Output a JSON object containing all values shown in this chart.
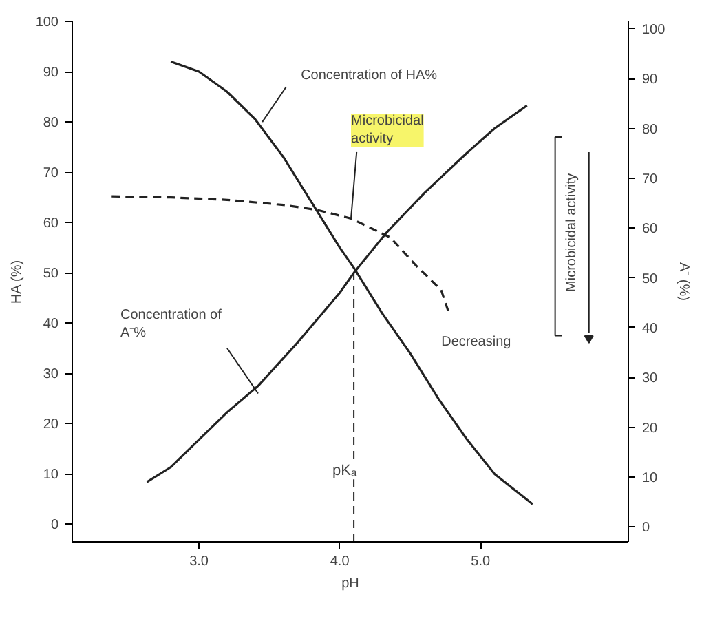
{
  "chart_data": {
    "type": "line",
    "xlabel": "pH",
    "ylabel": "HA (%)",
    "y2label": "A⁻ (%)",
    "xlim": [
      2.1,
      6.05
    ],
    "ylim": [
      -3.5,
      100
    ],
    "y2lim": [
      -3,
      101.5
    ],
    "xticks": [
      {
        "value": 3,
        "label": "3.0"
      },
      {
        "value": 4,
        "label": "4.0"
      },
      {
        "value": 5,
        "label": "5.0"
      }
    ],
    "yticks": [
      0,
      10,
      20,
      30,
      40,
      50,
      60,
      70,
      80,
      90,
      100
    ],
    "y2ticks": [
      0,
      10,
      20,
      30,
      40,
      50,
      60,
      70,
      80,
      90,
      100
    ],
    "grid": false,
    "marker": "none",
    "series": [
      {
        "color": "#222222",
        "line_style": "solid",
        "x": [
          2.8,
          3.0,
          3.2,
          3.4,
          3.6,
          3.8,
          4.0,
          4.1,
          4.3,
          4.5,
          4.7,
          4.9,
          5.1,
          5.37
        ],
        "values": [
          92,
          90,
          86,
          80.5,
          73,
          64,
          55,
          51,
          42,
          34,
          25,
          17,
          10,
          4
        ]
      },
      {
        "color": "#222222",
        "line_style": "solid",
        "axis": "y2",
        "x": [
          2.63,
          2.8,
          3.0,
          3.2,
          3.42,
          3.7,
          4.0,
          4.1,
          4.33,
          4.6,
          4.9,
          5.1,
          5.33
        ],
        "values": [
          9,
          12,
          17.5,
          23,
          28.3,
          37,
          47,
          51,
          59,
          67,
          75,
          80,
          84.6
        ]
      },
      {
        "color": "#222222",
        "line_style": "dashed",
        "x": [
          2.38,
          2.8,
          3.2,
          3.6,
          3.84,
          4.08,
          4.36,
          4.54,
          4.72,
          4.78
        ],
        "values": [
          65.2,
          65,
          64.5,
          63.5,
          62.5,
          60.8,
          57,
          51.5,
          46.6,
          41.6
        ]
      }
    ],
    "ref_lines": [
      {
        "axis": "x",
        "value": 4.1,
        "label": "pKₐ",
        "line_style": "dashed",
        "color": "#222222"
      }
    ],
    "annotations": [
      {
        "text": "Concentration of HA%",
        "x": 3.45,
        "y": 80
      },
      {
        "text": "Microbicidal activity",
        "x": 4.08,
        "y": 60.8
      },
      {
        "text": "Concentration of A⁻%",
        "x": 3.42,
        "y": 26
      },
      {
        "text": "Decreasing",
        "x": 4.78,
        "y": 41.6
      },
      "Microbicidal activity"
    ]
  }
}
